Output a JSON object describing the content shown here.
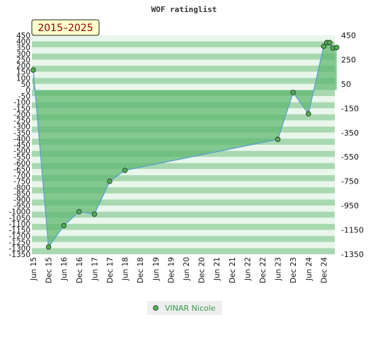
{
  "title": "WOF ratinglist",
  "badge": "2015–2025",
  "legend": {
    "label": "VINAR Nicole",
    "marker_color": "#4caf50"
  },
  "colors": {
    "fill": "#5fb870",
    "line": "#5aa0d0",
    "marker": "#4caf50",
    "band_dark": "#a8d8b0",
    "band_light": "#e9f6eb",
    "badge_bg": "#ffffcc"
  },
  "chart_data": {
    "type": "area",
    "title": "WOF ratinglist",
    "ylim": [
      -1350,
      450
    ],
    "left_ticks": [
      "450",
      "400",
      "350",
      "300",
      "250",
      "200",
      "150",
      "100",
      "50",
      "0",
      "-50",
      "-100",
      "-150",
      "-200",
      "-250",
      "-300",
      "-350",
      "-400",
      "-450",
      "-500",
      "-550",
      "-600",
      "-650",
      "-700",
      "-750",
      "-800",
      "-850",
      "-900",
      "-950",
      "-1000",
      "-1050",
      "-1100",
      "-1150",
      "-1200",
      "-1250",
      "-1300",
      "-1350"
    ],
    "right_ticks": [
      "450",
      "250",
      "50",
      "-150",
      "-350",
      "-550",
      "-750",
      "-950",
      "-1150",
      "-1350"
    ],
    "x_tick_labels": [
      "Jun 15",
      "Dec 15",
      "Jun 16",
      "Dec 16",
      "Jun 17",
      "Dec 17",
      "Jun 18",
      "Dec 18",
      "Jun 19",
      "Dec 19",
      "Jun 20",
      "Dec 20",
      "Jun 21",
      "Dec 21",
      "Jun 22",
      "Dec 22",
      "Jun 23",
      "Dec 23",
      "Jun 24",
      "Dec 24"
    ],
    "series": [
      {
        "name": "VINAR Nicole",
        "points": [
          {
            "x": 0.0,
            "y": 165
          },
          {
            "x": 1.0,
            "y": -1290
          },
          {
            "x": 2.0,
            "y": -1115
          },
          {
            "x": 3.0,
            "y": -1000
          },
          {
            "x": 4.0,
            "y": -1020
          },
          {
            "x": 5.0,
            "y": -750
          },
          {
            "x": 6.0,
            "y": -660
          },
          {
            "x": 16.0,
            "y": -405
          },
          {
            "x": 17.0,
            "y": -20
          },
          {
            "x": 18.0,
            "y": -195
          },
          {
            "x": 19.0,
            "y": 360
          },
          {
            "x": 19.2,
            "y": 390
          },
          {
            "x": 19.4,
            "y": 390
          },
          {
            "x": 19.6,
            "y": 345
          },
          {
            "x": 19.85,
            "y": 350
          }
        ]
      }
    ]
  }
}
